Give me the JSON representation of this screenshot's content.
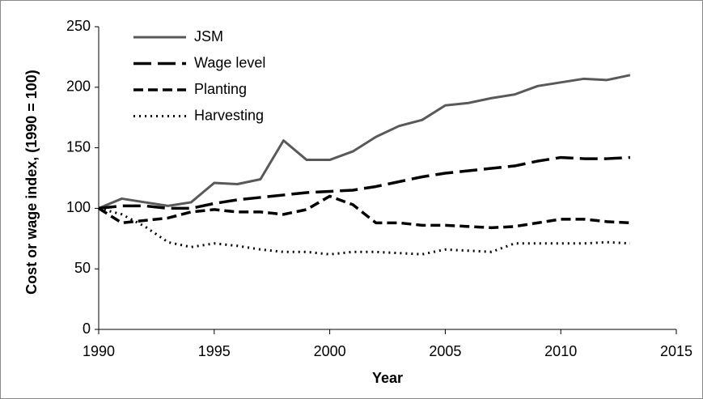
{
  "chart_data": {
    "type": "line",
    "xlabel": "Year",
    "ylabel": "Cost or wage index, (1990 = 100)",
    "x": [
      1990,
      1991,
      1992,
      1993,
      1994,
      1995,
      1996,
      1997,
      1998,
      1999,
      2000,
      2001,
      2002,
      2003,
      2004,
      2005,
      2006,
      2007,
      2008,
      2009,
      2010,
      2011,
      2012,
      2013
    ],
    "series": [
      {
        "name": "JSM",
        "color": "#595959",
        "dash": "solid",
        "values": [
          100,
          108,
          105,
          102,
          105,
          121,
          120,
          124,
          156,
          140,
          140,
          147,
          159,
          168,
          173,
          185,
          187,
          191,
          194,
          201,
          204,
          207,
          206,
          210
        ]
      },
      {
        "name": "Wage level",
        "color": "#000000",
        "dash": "longdash",
        "values": [
          100,
          102,
          102,
          100,
          100,
          104,
          107,
          109,
          111,
          113,
          114,
          115,
          118,
          122,
          126,
          129,
          131,
          133,
          135,
          139,
          142,
          141,
          141,
          142
        ]
      },
      {
        "name": "Planting",
        "color": "#000000",
        "dash": "dash",
        "values": [
          100,
          88,
          90,
          92,
          97,
          99,
          97,
          97,
          95,
          99,
          110,
          103,
          88,
          88,
          86,
          86,
          85,
          84,
          85,
          88,
          91,
          91,
          89,
          88
        ]
      },
      {
        "name": "Harvesting",
        "color": "#000000",
        "dash": "dot",
        "values": [
          100,
          95,
          85,
          72,
          68,
          71,
          69,
          66,
          64,
          64,
          62,
          64,
          64,
          63,
          62,
          66,
          65,
          64,
          71,
          71,
          71,
          71,
          72,
          71
        ]
      }
    ],
    "xlim": [
      1990,
      2015
    ],
    "xticks": [
      1990,
      1995,
      2000,
      2005,
      2010,
      2015
    ],
    "ylim": [
      0,
      250
    ],
    "yticks": [
      0,
      50,
      100,
      150,
      200,
      250
    ],
    "grid": false,
    "legend": "top-left"
  }
}
